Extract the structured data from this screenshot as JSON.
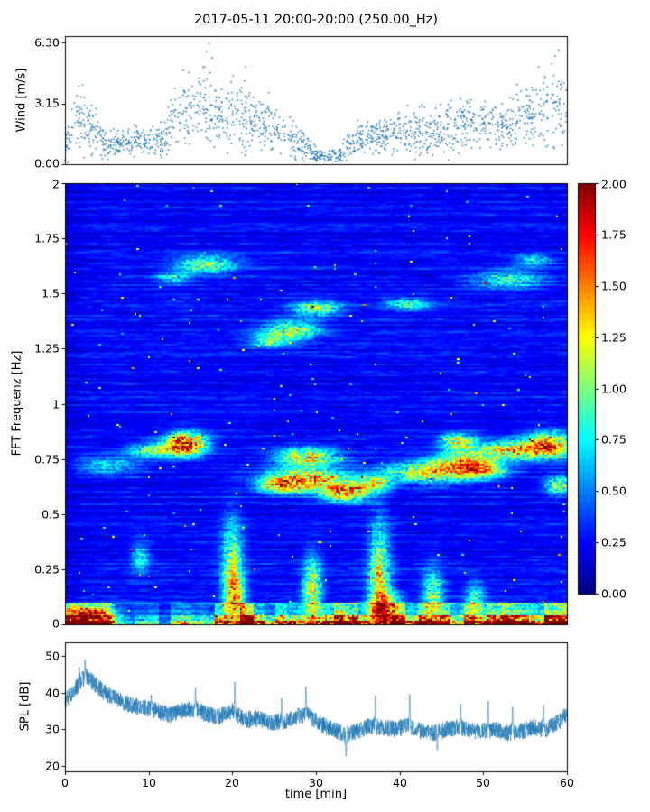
{
  "title": "2017-05-11 20:00-20:00 (250.00_Hz)",
  "colors": {
    "series": "#1f77b4",
    "background": "#ffffff",
    "axis": "#000000"
  },
  "chart_data": [
    {
      "type": "scatter",
      "name": "wind-speed",
      "ylabel": "Wind [m/s]",
      "xlim": [
        0,
        60
      ],
      "ylim": [
        0,
        6.63
      ],
      "yticks": [
        {
          "v": 6.3,
          "label": "6.30"
        },
        {
          "v": 3.15,
          "label": "3.15"
        },
        {
          "v": 0,
          "label": "0.00"
        }
      ],
      "n_points": 1600,
      "envelope": [
        [
          0,
          1.1,
          0.7
        ],
        [
          1.5,
          2.3,
          1.0
        ],
        [
          3,
          2.0,
          1.0
        ],
        [
          4.5,
          1.2,
          0.7
        ],
        [
          6,
          0.9,
          0.5
        ],
        [
          7.5,
          1.3,
          0.6
        ],
        [
          9,
          1.2,
          0.5
        ],
        [
          10.5,
          1.1,
          0.5
        ],
        [
          12,
          1.6,
          0.8
        ],
        [
          13.5,
          2.6,
          1.2
        ],
        [
          15,
          2.8,
          1.3
        ],
        [
          16.5,
          3.0,
          1.5
        ],
        [
          18,
          2.6,
          1.2
        ],
        [
          19.5,
          2.3,
          1.2
        ],
        [
          21,
          2.6,
          1.3
        ],
        [
          22.5,
          2.3,
          1.1
        ],
        [
          24,
          2.0,
          1.0
        ],
        [
          25.5,
          1.7,
          0.9
        ],
        [
          27,
          1.4,
          0.8
        ],
        [
          28.5,
          1.0,
          0.6
        ],
        [
          30,
          0.5,
          0.35
        ],
        [
          31.5,
          0.35,
          0.25
        ],
        [
          33,
          0.5,
          0.4
        ],
        [
          34.5,
          1.1,
          0.6
        ],
        [
          36,
          1.5,
          0.7
        ],
        [
          37.5,
          1.4,
          0.7
        ],
        [
          39,
          1.5,
          0.7
        ],
        [
          40.5,
          1.7,
          0.8
        ],
        [
          42,
          1.8,
          0.9
        ],
        [
          43.5,
          1.6,
          0.8
        ],
        [
          45,
          1.8,
          0.9
        ],
        [
          46.5,
          2.0,
          0.9
        ],
        [
          48,
          2.1,
          1.0
        ],
        [
          49.5,
          1.9,
          0.9
        ],
        [
          51,
          2.0,
          0.9
        ],
        [
          52.5,
          2.1,
          1.0
        ],
        [
          54,
          2.3,
          1.0
        ],
        [
          55.5,
          2.5,
          1.1
        ],
        [
          57,
          2.8,
          1.3
        ],
        [
          58.5,
          3.0,
          1.4
        ],
        [
          60,
          2.9,
          1.3
        ]
      ],
      "extra_points": [
        [
          17.2,
          6.25
        ],
        [
          16.9,
          5.85
        ],
        [
          17.6,
          5.5
        ],
        [
          21.6,
          5.05
        ],
        [
          58.6,
          5.6
        ],
        [
          59.0,
          5.9
        ],
        [
          58.2,
          5.2
        ],
        [
          2.1,
          4.1
        ],
        [
          14.8,
          4.75
        ]
      ]
    },
    {
      "type": "heatmap",
      "name": "fft-spectrogram",
      "ylabel": "FFT Frequenz [Hz]",
      "xlim": [
        0,
        60
      ],
      "ylim": [
        0,
        2
      ],
      "colormap": "jet",
      "clim": [
        0,
        2
      ],
      "yticks": [
        {
          "v": 2,
          "label": "2"
        },
        {
          "v": 1.75,
          "label": "1.75"
        },
        {
          "v": 1.5,
          "label": "1.5"
        },
        {
          "v": 1.25,
          "label": "1.25"
        },
        {
          "v": 1,
          "label": "1"
        },
        {
          "v": 0.75,
          "label": "0.75"
        },
        {
          "v": 0.5,
          "label": "0.5"
        },
        {
          "v": 0.25,
          "label": "0.25"
        },
        {
          "v": 0,
          "label": "0"
        }
      ],
      "colorbar_ticks": [
        {
          "v": 2,
          "label": "2.00"
        },
        {
          "v": 1.75,
          "label": "1.75"
        },
        {
          "v": 1.5,
          "label": "1.50"
        },
        {
          "v": 1.25,
          "label": "1.25"
        },
        {
          "v": 1,
          "label": "1.00"
        },
        {
          "v": 0.75,
          "label": "0.75"
        },
        {
          "v": 0.5,
          "label": "0.50"
        },
        {
          "v": 0.25,
          "label": "0.25"
        },
        {
          "v": 0,
          "label": "0.00"
        }
      ],
      "features": [
        {
          "x": 14.5,
          "y": 0.82,
          "sx": 1.6,
          "sy": 0.035,
          "a": 1.6
        },
        {
          "x": 11,
          "y": 0.79,
          "sx": 2.2,
          "sy": 0.025,
          "a": 0.7
        },
        {
          "x": 5,
          "y": 0.72,
          "sx": 2.5,
          "sy": 0.03,
          "a": 0.45
        },
        {
          "x": 29,
          "y": 0.66,
          "sx": 3.5,
          "sy": 0.035,
          "a": 1.1
        },
        {
          "x": 33.5,
          "y": 0.6,
          "sx": 2.0,
          "sy": 0.03,
          "a": 1.2
        },
        {
          "x": 29,
          "y": 0.76,
          "sx": 2.5,
          "sy": 0.03,
          "a": 1.0
        },
        {
          "x": 26,
          "y": 0.63,
          "sx": 2.0,
          "sy": 0.025,
          "a": 0.9
        },
        {
          "x": 37,
          "y": 0.64,
          "sx": 1.5,
          "sy": 0.025,
          "a": 0.8
        },
        {
          "x": 44,
          "y": 0.69,
          "sx": 4.0,
          "sy": 0.035,
          "a": 0.95
        },
        {
          "x": 47.5,
          "y": 0.74,
          "sx": 2.5,
          "sy": 0.03,
          "a": 0.85
        },
        {
          "x": 54,
          "y": 0.79,
          "sx": 3.5,
          "sy": 0.03,
          "a": 1.05
        },
        {
          "x": 58,
          "y": 0.82,
          "sx": 2.0,
          "sy": 0.04,
          "a": 0.95
        },
        {
          "x": 50,
          "y": 0.7,
          "sx": 2.0,
          "sy": 0.025,
          "a": 0.8
        },
        {
          "x": 47,
          "y": 0.83,
          "sx": 1.5,
          "sy": 0.025,
          "a": 0.9
        },
        {
          "x": 59,
          "y": 0.63,
          "sx": 1.2,
          "sy": 0.03,
          "a": 0.8
        },
        {
          "x": 27,
          "y": 1.33,
          "sx": 2.5,
          "sy": 0.03,
          "a": 0.85
        },
        {
          "x": 30,
          "y": 1.43,
          "sx": 2.0,
          "sy": 0.025,
          "a": 0.7
        },
        {
          "x": 24.5,
          "y": 1.28,
          "sx": 1.5,
          "sy": 0.02,
          "a": 0.6
        },
        {
          "x": 17,
          "y": 1.63,
          "sx": 2.5,
          "sy": 0.03,
          "a": 0.7
        },
        {
          "x": 13,
          "y": 1.57,
          "sx": 1.5,
          "sy": 0.02,
          "a": 0.5
        },
        {
          "x": 53,
          "y": 1.56,
          "sx": 3.0,
          "sy": 0.03,
          "a": 0.6
        },
        {
          "x": 41,
          "y": 1.45,
          "sx": 2.0,
          "sy": 0.02,
          "a": 0.55
        },
        {
          "x": 56,
          "y": 1.65,
          "sx": 1.5,
          "sy": 0.02,
          "a": 0.5
        },
        {
          "x": 20,
          "y": 0.28,
          "sx": 0.9,
          "sy": 0.14,
          "a": 0.75
        },
        {
          "x": 20.3,
          "y": 0.12,
          "sx": 0.8,
          "sy": 0.08,
          "a": 0.9
        },
        {
          "x": 29.6,
          "y": 0.16,
          "sx": 0.8,
          "sy": 0.1,
          "a": 0.9
        },
        {
          "x": 37.6,
          "y": 0.22,
          "sx": 0.9,
          "sy": 0.16,
          "a": 0.95
        },
        {
          "x": 38.3,
          "y": 0.07,
          "sx": 1.2,
          "sy": 0.05,
          "a": 1.1
        },
        {
          "x": 44,
          "y": 0.13,
          "sx": 0.9,
          "sy": 0.08,
          "a": 0.7
        },
        {
          "x": 49,
          "y": 0.1,
          "sx": 0.8,
          "sy": 0.06,
          "a": 0.6
        },
        {
          "x": 9,
          "y": 0.3,
          "sx": 0.8,
          "sy": 0.05,
          "a": 0.5
        },
        {
          "x": 2.5,
          "y": 0.045,
          "sx": 2.0,
          "sy": 0.025,
          "a": 1.2
        }
      ],
      "bottom_band": {
        "y_top": 0.1,
        "left_until_x": 6,
        "strong_from_x": 18,
        "left_amp": 1.0,
        "mid_amp": 0.45,
        "strong_amp": 1.25
      }
    },
    {
      "type": "line",
      "name": "spl",
      "ylabel": "SPL [dB]",
      "xlabel": "time [min]",
      "xlim": [
        0,
        60
      ],
      "ylim": [
        18.5,
        53.8
      ],
      "yticks": [
        {
          "v": 50,
          "label": "50"
        },
        {
          "v": 40,
          "label": "40"
        },
        {
          "v": 30,
          "label": "30"
        },
        {
          "v": 20,
          "label": "20"
        }
      ],
      "xticks": [
        {
          "v": 0,
          "label": "0"
        },
        {
          "v": 10,
          "label": "10"
        },
        {
          "v": 20,
          "label": "20"
        },
        {
          "v": 30,
          "label": "30"
        },
        {
          "v": 40,
          "label": "40"
        },
        {
          "v": 50,
          "label": "50"
        },
        {
          "v": 60,
          "label": "60"
        }
      ],
      "noise": 2.3,
      "envelope": [
        [
          0,
          37.5
        ],
        [
          1,
          40.5
        ],
        [
          2,
          43.5
        ],
        [
          2.6,
          44.5
        ],
        [
          3.5,
          42.5
        ],
        [
          5,
          39.5
        ],
        [
          6.5,
          38
        ],
        [
          8,
          36.5
        ],
        [
          9.5,
          36
        ],
        [
          11,
          35
        ],
        [
          12.5,
          34
        ],
        [
          14,
          35
        ],
        [
          15.5,
          35.5
        ],
        [
          17,
          34
        ],
        [
          18.5,
          33.5
        ],
        [
          20,
          35
        ],
        [
          21.5,
          32.5
        ],
        [
          23,
          33
        ],
        [
          24.5,
          32
        ],
        [
          26,
          32
        ],
        [
          27.5,
          33.5
        ],
        [
          29,
          34
        ],
        [
          30.5,
          31.5
        ],
        [
          32,
          30
        ],
        [
          33.5,
          28.5
        ],
        [
          35,
          29.5
        ],
        [
          36.5,
          31
        ],
        [
          38,
          30.5
        ],
        [
          39.5,
          30
        ],
        [
          41,
          31
        ],
        [
          42.5,
          29.5
        ],
        [
          44,
          29
        ],
        [
          45.5,
          30
        ],
        [
          47,
          30.5
        ],
        [
          48.5,
          29.5
        ],
        [
          50,
          29.5
        ],
        [
          51.5,
          30
        ],
        [
          53,
          29
        ],
        [
          54.5,
          29.5
        ],
        [
          56,
          30.5
        ],
        [
          57.5,
          30
        ],
        [
          59,
          32
        ],
        [
          60,
          34
        ]
      ],
      "spikes": [
        [
          2.4,
          50
        ],
        [
          1.7,
          48
        ],
        [
          10.3,
          40
        ],
        [
          15.6,
          42
        ],
        [
          20.3,
          44.5
        ],
        [
          25.9,
          40
        ],
        [
          28.8,
          43
        ],
        [
          33.6,
          21.5
        ],
        [
          37.1,
          40.5
        ],
        [
          41.2,
          41
        ],
        [
          44.5,
          23
        ],
        [
          47.3,
          38.5
        ],
        [
          50.6,
          39
        ],
        [
          53.5,
          37
        ],
        [
          57.2,
          38
        ]
      ]
    }
  ]
}
